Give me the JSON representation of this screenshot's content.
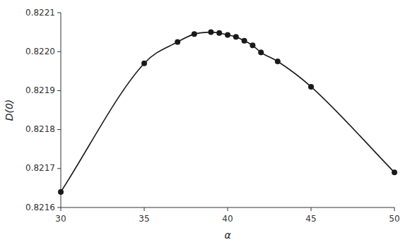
{
  "chart_data": {
    "type": "line",
    "xlabel": "α",
    "ylabel": "D(0)",
    "x": [
      30,
      35,
      37,
      38,
      39,
      39.5,
      40,
      40.5,
      41,
      41.5,
      42,
      43,
      45,
      50
    ],
    "values": [
      0.82164,
      0.82197,
      0.822025,
      0.822045,
      0.82205,
      0.822048,
      0.822043,
      0.822038,
      0.822028,
      0.822016,
      0.821998,
      0.821975,
      0.82191,
      0.82169
    ],
    "color": "#1a1a1a",
    "marker": "circle",
    "line_style": "solid",
    "grid": false,
    "xlim": [
      30,
      50
    ],
    "ylim": [
      0.8216,
      0.8221
    ],
    "xticks": [
      30,
      35,
      40,
      45,
      50
    ],
    "yticks": [
      0.8216,
      0.8217,
      0.8218,
      0.8219,
      {
        "value": 0.822,
        "label": "0.8220"
      },
      0.8221
    ]
  }
}
